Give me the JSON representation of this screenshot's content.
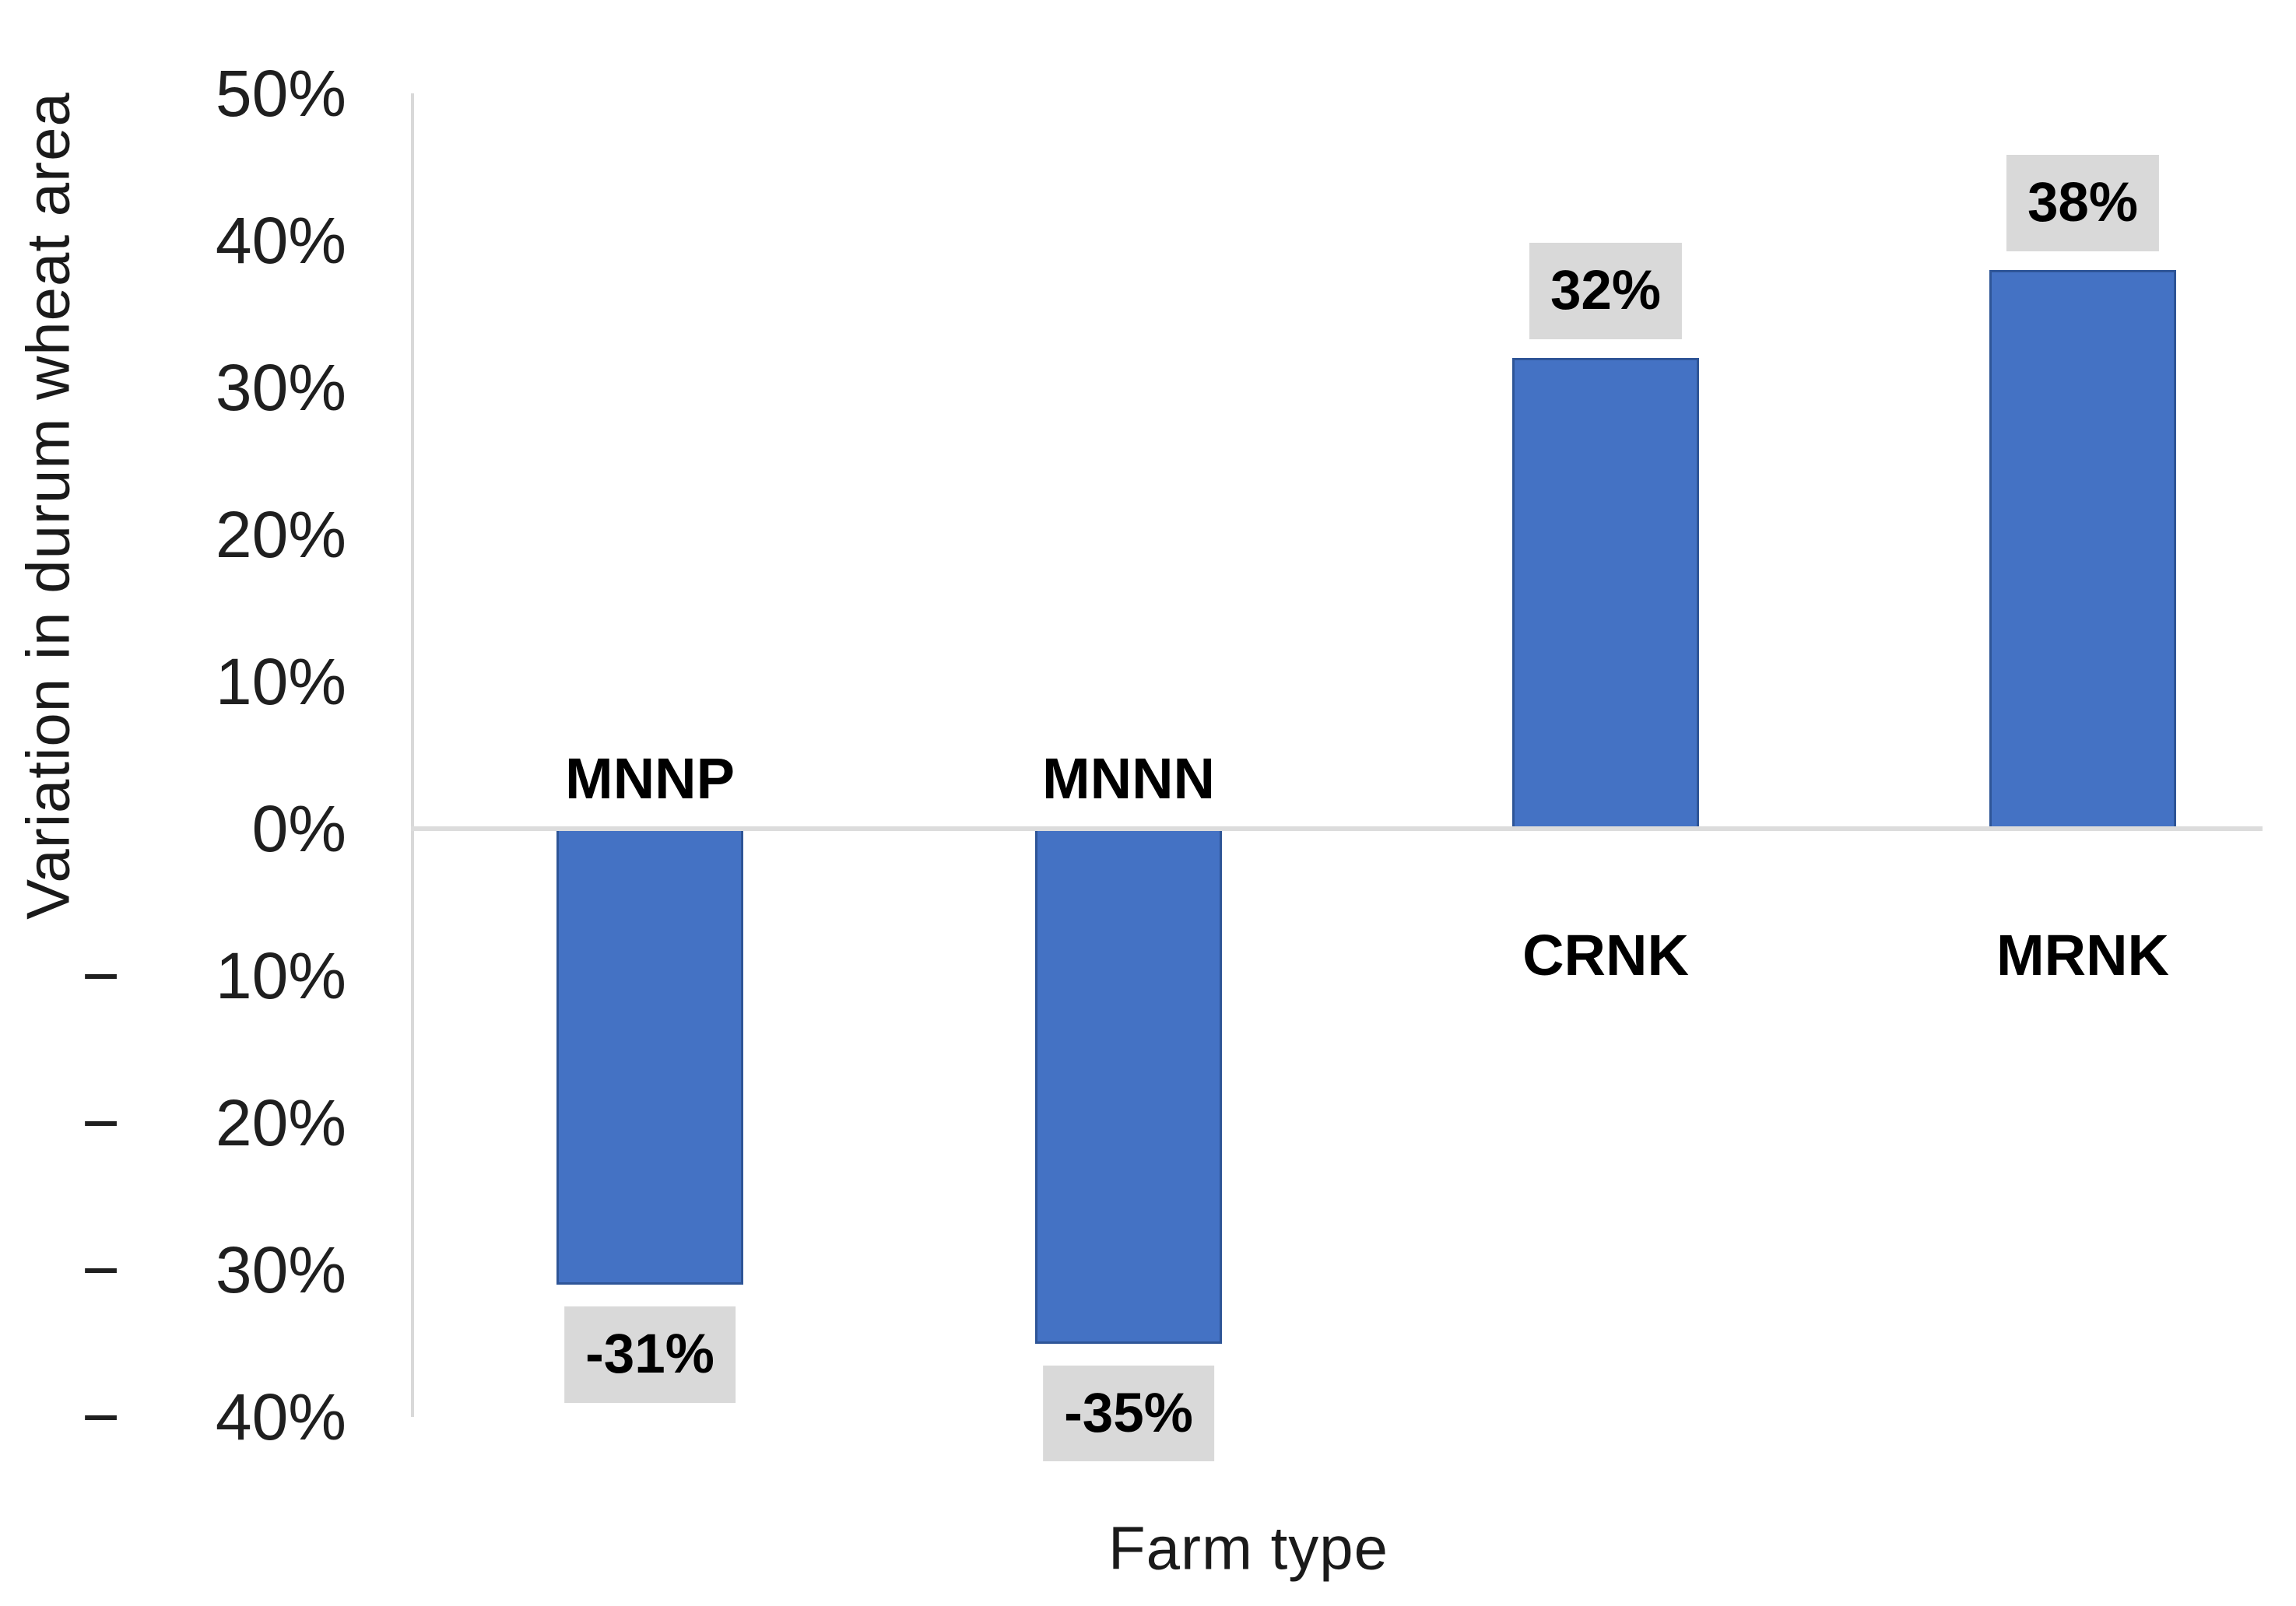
{
  "chart_data": {
    "type": "bar",
    "title": "",
    "xlabel": "Farm type",
    "ylabel": "Variation in durum wheat area",
    "categories": [
      "MNNP",
      "MNNN",
      "CRNK",
      "MRNK"
    ],
    "values": [
      -31,
      -35,
      32,
      38
    ],
    "data_labels": [
      "-31%",
      "-35%",
      "32%",
      "38%"
    ],
    "yticks_values": [
      50,
      40,
      30,
      20,
      10,
      0,
      -10,
      -20,
      -30,
      -40
    ],
    "ytick_suffix": "%",
    "negative_tick_minus_char": "−",
    "ylim": [
      -40,
      50
    ],
    "grid": false,
    "legend": false,
    "colors": {
      "bar_fill": "#4472C4",
      "bar_border": "#2E5597",
      "axis_line": "#D9D9D9",
      "zero_line": "#DCDCDC",
      "label_box_bg": "#D9D9D9",
      "tick_text": "#1F1F1F",
      "label_text": "#000000"
    }
  }
}
